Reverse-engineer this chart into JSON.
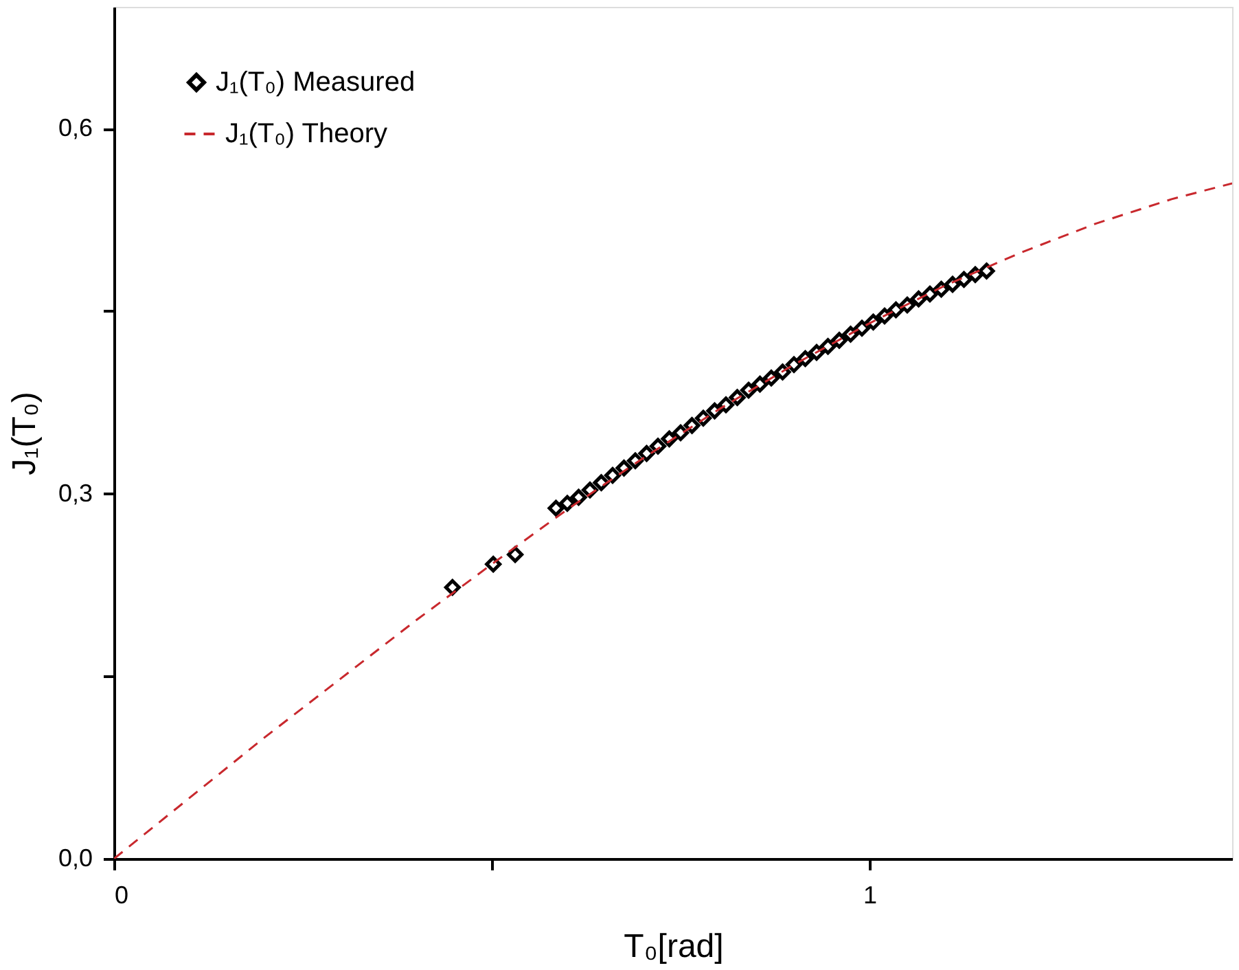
{
  "chart_data": {
    "type": "scatter",
    "xlabel": "T₀[rad]",
    "ylabel": "J₁(T₀)",
    "xlim": [
      0,
      1.48
    ],
    "ylim": [
      0,
      0.7
    ],
    "xticks": [
      {
        "value": 0,
        "label": "0"
      },
      {
        "value": 0.5,
        "label": null
      },
      {
        "value": 1,
        "label": "1"
      }
    ],
    "yticks": [
      {
        "value": 0,
        "label": "0,0"
      },
      {
        "value": 0.15,
        "label": null
      },
      {
        "value": 0.3,
        "label": "0,3"
      },
      {
        "value": 0.45,
        "label": null
      },
      {
        "value": 0.6,
        "label": "0,6"
      }
    ],
    "legend": "top left",
    "series": [
      {
        "name": "J₁(T₀) Measured",
        "marker": "diamond",
        "color": "#000000",
        "x": [
          0.448,
          0.502,
          0.531,
          0.585,
          0.6,
          0.615,
          0.63,
          0.645,
          0.66,
          0.675,
          0.69,
          0.705,
          0.72,
          0.735,
          0.75,
          0.765,
          0.78,
          0.795,
          0.81,
          0.825,
          0.84,
          0.855,
          0.87,
          0.885,
          0.9,
          0.915,
          0.93,
          0.945,
          0.96,
          0.975,
          0.99,
          1.005,
          1.02,
          1.035,
          1.05,
          1.065,
          1.08,
          1.095,
          1.11,
          1.125,
          1.14,
          1.155
        ],
        "values": [
          0.223,
          0.242,
          0.25,
          0.288,
          0.292,
          0.297,
          0.303,
          0.309,
          0.315,
          0.321,
          0.327,
          0.333,
          0.339,
          0.345,
          0.35,
          0.356,
          0.362,
          0.368,
          0.373,
          0.379,
          0.385,
          0.39,
          0.395,
          0.4,
          0.406,
          0.411,
          0.416,
          0.421,
          0.426,
          0.431,
          0.436,
          0.441,
          0.446,
          0.451,
          0.455,
          0.46,
          0.464,
          0.468,
          0.472,
          0.476,
          0.48,
          0.483
        ]
      },
      {
        "name": "J₁(T₀) Theory",
        "type": "line",
        "line_style": "dashed",
        "color": "#c8282d",
        "x": [
          0,
          0.1,
          0.2,
          0.3,
          0.4,
          0.5,
          0.6,
          0.7,
          0.8,
          0.9,
          1.0,
          1.1,
          1.2,
          1.3,
          1.4,
          1.48
        ],
        "values": [
          0,
          0.05,
          0.1,
          0.148,
          0.196,
          0.242,
          0.287,
          0.329,
          0.369,
          0.406,
          0.44,
          0.471,
          0.498,
          0.522,
          0.542,
          0.555
        ]
      }
    ]
  }
}
